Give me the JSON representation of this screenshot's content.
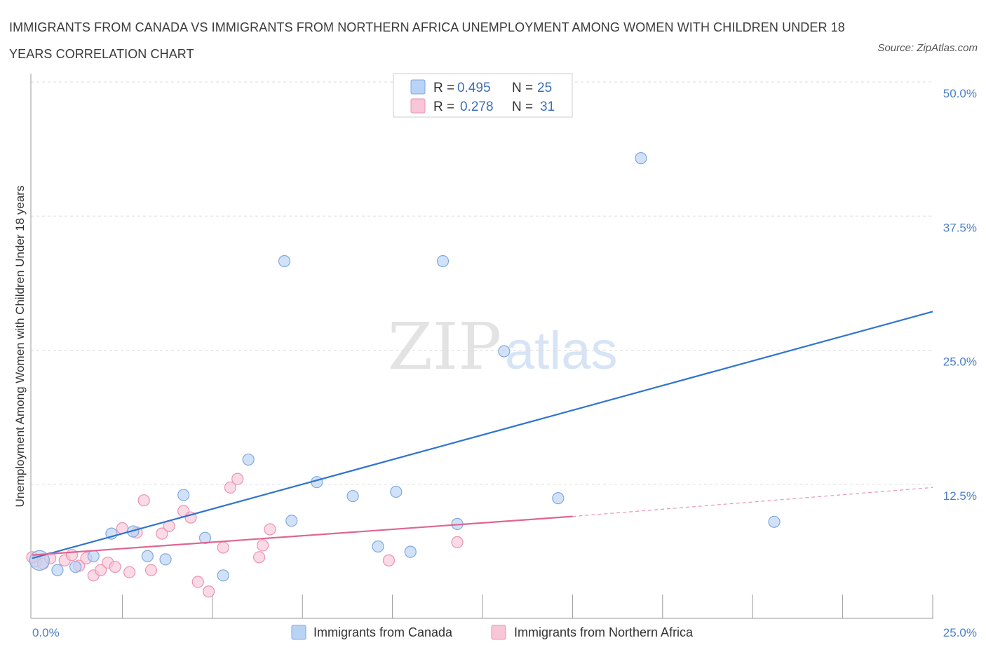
{
  "title": "IMMIGRANTS FROM CANADA VS IMMIGRANTS FROM NORTHERN AFRICA UNEMPLOYMENT AMONG WOMEN WITH CHILDREN UNDER 18 YEARS CORRELATION CHART",
  "source": "Source: ZipAtlas.com",
  "watermark": {
    "zip": "ZIP",
    "atlas": "atlas"
  },
  "colors": {
    "canada_fill": "#b9d3f5",
    "canada_stroke": "#7fa9e3",
    "canada_line": "#2f74d0",
    "africa_fill": "#f8c6d6",
    "africa_stroke": "#ec93b2",
    "africa_line": "#e06591",
    "grid": "#dddddd",
    "tick_text": "#4a7fc8"
  },
  "legend_top": {
    "rows": [
      {
        "r_label": "R =",
        "r_value": "0.495",
        "n_label": "N =",
        "n_value": "25"
      },
      {
        "r_label": "R =",
        "r_value": "0.278",
        "n_label": "N =",
        "n_value": "31"
      }
    ]
  },
  "chart_data": {
    "type": "scatter",
    "title": "IMMIGRANTS FROM CANADA VS IMMIGRANTS FROM NORTHERN AFRICA UNEMPLOYMENT AMONG WOMEN WITH CHILDREN UNDER 18 YEARS CORRELATION CHART",
    "xlabel": "",
    "ylabel": "Unemployment Among Women with Children Under 18 years",
    "xlim": [
      0,
      25
    ],
    "ylim": [
      0,
      50
    ],
    "x_tick_labels": [
      "0.0%",
      "25.0%"
    ],
    "y_ticks": [
      12.5,
      25.0,
      37.5,
      50.0
    ],
    "y_tick_labels": [
      "12.5%",
      "25.0%",
      "37.5%",
      "50.0%"
    ],
    "grid": true,
    "legend_position": "top-center",
    "series": [
      {
        "name": "Immigrants from Canada",
        "R": 0.495,
        "N": 25,
        "trendline": {
          "x": [
            0.0,
            25.0
          ],
          "y": [
            5.6,
            28.6
          ]
        },
        "points": [
          {
            "x": 0.2,
            "y": 5.4,
            "big": true
          },
          {
            "x": 0.7,
            "y": 4.5
          },
          {
            "x": 1.2,
            "y": 4.8
          },
          {
            "x": 1.7,
            "y": 5.8
          },
          {
            "x": 2.2,
            "y": 7.9
          },
          {
            "x": 2.8,
            "y": 8.1
          },
          {
            "x": 3.2,
            "y": 5.8
          },
          {
            "x": 3.7,
            "y": 5.5
          },
          {
            "x": 4.2,
            "y": 11.5
          },
          {
            "x": 4.8,
            "y": 7.5
          },
          {
            "x": 5.3,
            "y": 4.0
          },
          {
            "x": 6.0,
            "y": 14.8
          },
          {
            "x": 7.0,
            "y": 33.3
          },
          {
            "x": 7.2,
            "y": 9.1
          },
          {
            "x": 7.9,
            "y": 12.7
          },
          {
            "x": 8.9,
            "y": 11.4
          },
          {
            "x": 9.6,
            "y": 6.7
          },
          {
            "x": 10.1,
            "y": 11.8
          },
          {
            "x": 10.5,
            "y": 6.2
          },
          {
            "x": 11.4,
            "y": 33.3
          },
          {
            "x": 11.8,
            "y": 8.8
          },
          {
            "x": 13.1,
            "y": 24.9
          },
          {
            "x": 14.6,
            "y": 11.2
          },
          {
            "x": 16.9,
            "y": 42.9
          },
          {
            "x": 20.6,
            "y": 9.0
          }
        ]
      },
      {
        "name": "Immigrants from Northern Africa",
        "R": 0.278,
        "N": 31,
        "trendline": {
          "x": [
            0.0,
            15.0
          ],
          "y": [
            5.9,
            9.5
          ]
        },
        "trendline_dashed": {
          "x": [
            15.0,
            25.0
          ],
          "y": [
            9.5,
            12.2
          ]
        },
        "points": [
          {
            "x": 0.1,
            "y": 5.3
          },
          {
            "x": 0.3,
            "y": 5.1
          },
          {
            "x": 0.5,
            "y": 5.6
          },
          {
            "x": 0.9,
            "y": 5.4
          },
          {
            "x": 1.1,
            "y": 5.9
          },
          {
            "x": 1.3,
            "y": 4.9
          },
          {
            "x": 1.5,
            "y": 5.6
          },
          {
            "x": 1.7,
            "y": 4.0
          },
          {
            "x": 1.9,
            "y": 4.5
          },
          {
            "x": 2.1,
            "y": 5.2
          },
          {
            "x": 2.3,
            "y": 4.8
          },
          {
            "x": 2.5,
            "y": 8.4
          },
          {
            "x": 2.7,
            "y": 4.3
          },
          {
            "x": 2.9,
            "y": 8.0
          },
          {
            "x": 3.1,
            "y": 11.0
          },
          {
            "x": 3.3,
            "y": 4.5
          },
          {
            "x": 3.6,
            "y": 7.9
          },
          {
            "x": 3.8,
            "y": 8.6
          },
          {
            "x": 4.2,
            "y": 10.0
          },
          {
            "x": 4.4,
            "y": 9.4
          },
          {
            "x": 4.6,
            "y": 3.4
          },
          {
            "x": 4.9,
            "y": 2.5
          },
          {
            "x": 5.3,
            "y": 6.6
          },
          {
            "x": 5.5,
            "y": 12.2
          },
          {
            "x": 5.7,
            "y": 13.0
          },
          {
            "x": 6.3,
            "y": 5.7
          },
          {
            "x": 6.4,
            "y": 6.8
          },
          {
            "x": 6.6,
            "y": 8.3
          },
          {
            "x": 9.9,
            "y": 5.4
          },
          {
            "x": 11.8,
            "y": 7.1
          },
          {
            "x": 0.0,
            "y": 5.7
          }
        ]
      }
    ]
  },
  "bottom_legend": {
    "items": [
      {
        "label": "Immigrants from Canada"
      },
      {
        "label": "Immigrants from Northern Africa"
      }
    ]
  }
}
